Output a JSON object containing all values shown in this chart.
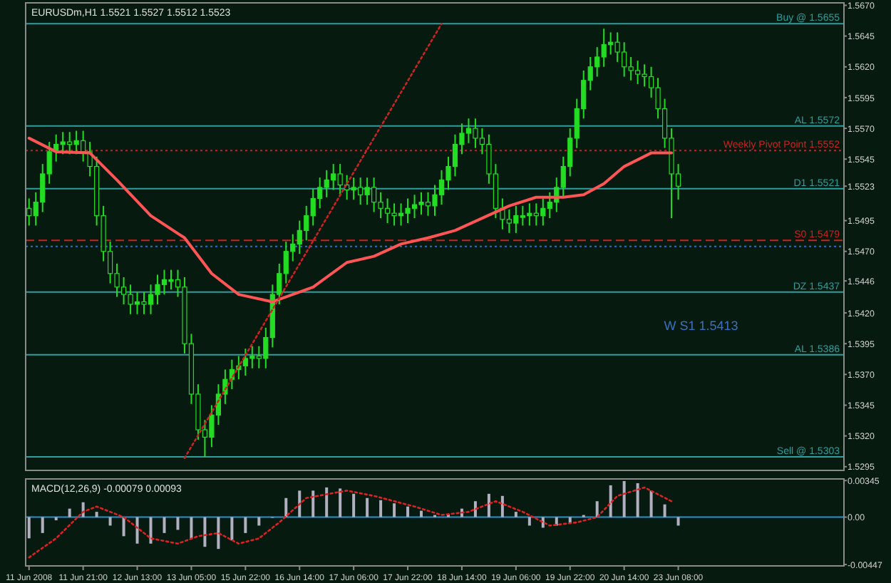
{
  "chart_data": [
    {
      "type": "candlestick",
      "title": "EURUSDm,H1 1.5521 1.5527 1.5512 1.5523",
      "color": "#22dd22",
      "categories": [
        null,
        null,
        null,
        null,
        null,
        null,
        null,
        null,
        null,
        null,
        null,
        null,
        null,
        null,
        null,
        null,
        null,
        null,
        null,
        null,
        null,
        null,
        null,
        null,
        null,
        null,
        null,
        null,
        null,
        null,
        null,
        null,
        null,
        null,
        null,
        null,
        null,
        null,
        null,
        null,
        null,
        null,
        null,
        null,
        null,
        null,
        null,
        null,
        null,
        null,
        null,
        null,
        null,
        null,
        null,
        null,
        null,
        null,
        null,
        null,
        null,
        null,
        null,
        null,
        null,
        null,
        null,
        null,
        null,
        null,
        null,
        null,
        null,
        null,
        null,
        null,
        null,
        null,
        null,
        null,
        null,
        null,
        null,
        null,
        null,
        null,
        null,
        null,
        null,
        null,
        null,
        null,
        null,
        null,
        null,
        null,
        null,
        null,
        null,
        null,
        null,
        null,
        null,
        null,
        null,
        null,
        null,
        null,
        null,
        null,
        null,
        null,
        null,
        null,
        null,
        null,
        null,
        null,
        null,
        null,
        null
      ],
      "ohlc": [
        [
          1.5505,
          1.5513,
          1.5491,
          1.5499
        ],
        [
          1.5499,
          1.5518,
          1.5491,
          1.551
        ],
        [
          1.551,
          1.5541,
          1.5502,
          1.5533
        ],
        [
          1.5533,
          1.5559,
          1.5525,
          1.5551
        ],
        [
          1.5551,
          1.5565,
          1.5543,
          1.5557
        ],
        [
          1.5557,
          1.5567,
          1.5549,
          1.5559
        ],
        [
          1.5559,
          1.5567,
          1.5549,
          1.5557
        ],
        [
          1.5557,
          1.5568,
          1.5549,
          1.556
        ],
        [
          1.556,
          1.5568,
          1.5543,
          1.5551
        ],
        [
          1.5551,
          1.5559,
          1.5531,
          1.5539
        ],
        [
          1.5539,
          1.5547,
          1.5491,
          1.5499
        ],
        [
          1.5499,
          1.5507,
          1.5462,
          1.547
        ],
        [
          1.547,
          1.5478,
          1.5444,
          1.5452
        ],
        [
          1.5452,
          1.546,
          1.5433,
          1.5441
        ],
        [
          1.5441,
          1.5449,
          1.5427,
          1.5435
        ],
        [
          1.5435,
          1.5443,
          1.5419,
          1.5427
        ],
        [
          1.5427,
          1.5437,
          1.5419,
          1.5429
        ],
        [
          1.5429,
          1.5437,
          1.5419,
          1.5427
        ],
        [
          1.5427,
          1.5443,
          1.5419,
          1.5435
        ],
        [
          1.5435,
          1.5451,
          1.5427,
          1.5443
        ],
        [
          1.5443,
          1.5455,
          1.5435,
          1.5447
        ],
        [
          1.5447,
          1.5455,
          1.5439,
          1.5447
        ],
        [
          1.5447,
          1.5455,
          1.5433,
          1.5441
        ],
        [
          1.5441,
          1.5449,
          1.5387,
          1.5395
        ],
        [
          1.5395,
          1.5403,
          1.5346,
          1.5354
        ],
        [
          1.5354,
          1.5362,
          1.5317,
          1.5325
        ],
        [
          1.5325,
          1.5333,
          1.5303,
          1.5319
        ],
        [
          1.5319,
          1.5345,
          1.5311,
          1.5337
        ],
        [
          1.5337,
          1.5362,
          1.5329,
          1.5354
        ],
        [
          1.5354,
          1.5374,
          1.5346,
          1.5366
        ],
        [
          1.5366,
          1.5382,
          1.5358,
          1.5374
        ],
        [
          1.5374,
          1.5385,
          1.5366,
          1.5377
        ],
        [
          1.5377,
          1.5391,
          1.5369,
          1.5383
        ],
        [
          1.5383,
          1.5393,
          1.5375,
          1.5385
        ],
        [
          1.5385,
          1.5393,
          1.5375,
          1.5383
        ],
        [
          1.5383,
          1.5408,
          1.5375,
          1.54
        ],
        [
          1.54,
          1.5443,
          1.5392,
          1.5435
        ],
        [
          1.5435,
          1.546,
          1.5427,
          1.5452
        ],
        [
          1.5452,
          1.5478,
          1.5444,
          1.547
        ],
        [
          1.547,
          1.5484,
          1.5462,
          1.5476
        ],
        [
          1.5476,
          1.5495,
          1.5468,
          1.5487
        ],
        [
          1.5487,
          1.5507,
          1.5479,
          1.5499
        ],
        [
          1.5499,
          1.5521,
          1.5491,
          1.5513
        ],
        [
          1.5513,
          1.553,
          1.5505,
          1.5522
        ],
        [
          1.5522,
          1.5536,
          1.5514,
          1.5528
        ],
        [
          1.5528,
          1.5541,
          1.552,
          1.5533
        ],
        [
          1.5533,
          1.5541,
          1.5516,
          1.5524
        ],
        [
          1.5524,
          1.5532,
          1.5512,
          1.552
        ],
        [
          1.552,
          1.553,
          1.5512,
          1.5522
        ],
        [
          1.5522,
          1.553,
          1.5508,
          1.5516
        ],
        [
          1.5516,
          1.553,
          1.5508,
          1.5522
        ],
        [
          1.5522,
          1.553,
          1.5502,
          1.551
        ],
        [
          1.551,
          1.5518,
          1.5497,
          1.5505
        ],
        [
          1.5505,
          1.5513,
          1.5493,
          1.5501
        ],
        [
          1.5501,
          1.5509,
          1.5491,
          1.5499
        ],
        [
          1.5499,
          1.5509,
          1.5491,
          1.5501
        ],
        [
          1.5501,
          1.5513,
          1.5493,
          1.5505
        ],
        [
          1.5505,
          1.5516,
          1.5497,
          1.5508
        ],
        [
          1.5508,
          1.5518,
          1.55,
          1.551
        ],
        [
          1.551,
          1.5518,
          1.5499,
          1.5507
        ],
        [
          1.5507,
          1.5524,
          1.5499,
          1.5516
        ],
        [
          1.5516,
          1.5536,
          1.5508,
          1.5528
        ],
        [
          1.5528,
          1.5547,
          1.552,
          1.5539
        ],
        [
          1.5539,
          1.5565,
          1.5531,
          1.5557
        ],
        [
          1.5557,
          1.5574,
          1.5549,
          1.5566
        ],
        [
          1.5566,
          1.5578,
          1.5558,
          1.557
        ],
        [
          1.557,
          1.5578,
          1.5554,
          1.5562
        ],
        [
          1.5562,
          1.557,
          1.5549,
          1.5557
        ],
        [
          1.5557,
          1.5565,
          1.5525,
          1.5533
        ],
        [
          1.5533,
          1.5541,
          1.5497,
          1.5505
        ],
        [
          1.5505,
          1.5513,
          1.5488,
          1.5496
        ],
        [
          1.5496,
          1.5504,
          1.5485,
          1.5493
        ],
        [
          1.5493,
          1.5507,
          1.5485,
          1.5499
        ],
        [
          1.5499,
          1.5507,
          1.5491,
          1.5499
        ],
        [
          1.5499,
          1.5509,
          1.5491,
          1.5501
        ],
        [
          1.5501,
          1.5509,
          1.5491,
          1.5499
        ],
        [
          1.5499,
          1.5513,
          1.5491,
          1.5505
        ],
        [
          1.5505,
          1.5518,
          1.5497,
          1.551
        ],
        [
          1.551,
          1.553,
          1.5502,
          1.5522
        ],
        [
          1.5522,
          1.5547,
          1.5514,
          1.5539
        ],
        [
          1.5539,
          1.557,
          1.5531,
          1.5562
        ],
        [
          1.5562,
          1.5594,
          1.5554,
          1.5586
        ],
        [
          1.5586,
          1.5617,
          1.5578,
          1.5609
        ],
        [
          1.5609,
          1.5628,
          1.5601,
          1.562
        ],
        [
          1.562,
          1.5636,
          1.5612,
          1.5628
        ],
        [
          1.5628,
          1.5651,
          1.562,
          1.5638
        ],
        [
          1.5638,
          1.5648,
          1.563,
          1.564
        ],
        [
          1.564,
          1.5648,
          1.5624,
          1.5632
        ],
        [
          1.5632,
          1.564,
          1.5612,
          1.562
        ],
        [
          1.562,
          1.5628,
          1.5609,
          1.5617
        ],
        [
          1.5617,
          1.5625,
          1.5606,
          1.5614
        ],
        [
          1.5614,
          1.5622,
          1.5604,
          1.5612
        ],
        [
          1.5612,
          1.562,
          1.5595,
          1.5603
        ],
        [
          1.5603,
          1.5611,
          1.5578,
          1.5586
        ],
        [
          1.5586,
          1.5594,
          1.5554,
          1.5562
        ],
        [
          1.5562,
          1.557,
          1.5497,
          1.5533
        ],
        [
          1.5533,
          1.5541,
          1.5512,
          1.5523
        ],
        null,
        null,
        null,
        null,
        null,
        null,
        null,
        null,
        null,
        null,
        null,
        null,
        null,
        null,
        null,
        null,
        null,
        null,
        null,
        null,
        null,
        null,
        null,
        null
      ],
      "ylim": [
        1.5292,
        1.5672
      ],
      "yticks": [
        {
          "value": 1.567,
          "label": "1.5670"
        },
        {
          "value": 1.5645,
          "label": "1.5645"
        },
        {
          "value": 1.562,
          "label": "1.5620"
        },
        {
          "value": 1.5595,
          "label": "1.5595"
        },
        {
          "value": 1.557,
          "label": "1.5570"
        },
        {
          "value": 1.5545,
          "label": "1.5545"
        },
        {
          "value": 1.5523,
          "label": "1.5523"
        },
        {
          "value": 1.5495,
          "label": "1.5495"
        },
        {
          "value": 1.547,
          "label": "1.5470"
        },
        {
          "value": 1.5446,
          "label": "1.5446"
        },
        {
          "value": 1.542,
          "label": "1.5420"
        },
        {
          "value": 1.5395,
          "label": "1.5395"
        },
        {
          "value": 1.537,
          "label": "1.5370"
        },
        {
          "value": 1.5345,
          "label": "1.5345"
        },
        {
          "value": 1.532,
          "label": "1.5320"
        },
        {
          "value": 1.5295,
          "label": "1.5295"
        }
      ],
      "series": [
        {
          "type": "line",
          "color": "#ff5555",
          "line_style": "solid",
          "values": [
            1.5562,
            null,
            null,
            null,
            1.5551,
            null,
            null,
            null,
            null,
            1.555,
            null,
            null,
            null,
            1.5528,
            null,
            null,
            null,
            null,
            1.5499,
            null,
            null,
            null,
            null,
            1.5481,
            null,
            null,
            null,
            1.5452,
            null,
            null,
            null,
            1.5435,
            null,
            null,
            null,
            null,
            1.5429,
            null,
            null,
            1.5435,
            null,
            null,
            1.5441,
            null,
            null,
            null,
            null,
            1.5461,
            null,
            null,
            null,
            1.5466,
            null,
            null,
            null,
            1.5476,
            null,
            null,
            null,
            1.5481,
            null,
            null,
            null,
            1.5487,
            null,
            null,
            null,
            null,
            null,
            null,
            null,
            1.5507,
            null,
            null,
            null,
            1.5514,
            null,
            null,
            null,
            1.5514,
            null,
            null,
            1.5516,
            null,
            null,
            1.5525,
            null,
            null,
            1.5539,
            null,
            null,
            null,
            1.555,
            null,
            null,
            1.555,
            null,
            null,
            null,
            null,
            null,
            null,
            null,
            null,
            null,
            null,
            null,
            null,
            null,
            null,
            null,
            null,
            null,
            null,
            null,
            null,
            null,
            null,
            null,
            null,
            null
          ]
        },
        {
          "type": "line",
          "color": "#cc2222",
          "line_style": "dotted",
          "values": [
            null,
            null,
            null,
            null,
            null,
            null,
            null,
            null,
            null,
            null,
            null,
            null,
            null,
            null,
            null,
            null,
            null,
            null,
            null,
            null,
            null,
            null,
            null,
            1.5302,
            null,
            null,
            null,
            null,
            null,
            null,
            null,
            null,
            null,
            null,
            null,
            null,
            null,
            null,
            null,
            null,
            null,
            null,
            null,
            null,
            null,
            null,
            null,
            null,
            null,
            null,
            null,
            null,
            null,
            null,
            null,
            null,
            null,
            null,
            null,
            null,
            null,
            1.5655,
            null,
            null,
            null,
            null,
            null,
            null,
            null,
            null,
            null,
            null,
            null,
            null,
            null,
            null,
            null,
            null,
            null,
            null,
            null,
            null,
            null,
            null,
            null,
            null,
            null,
            null,
            null,
            null,
            null,
            null,
            null,
            null,
            null,
            null,
            null,
            null,
            null,
            null,
            null,
            null,
            null,
            null,
            null,
            null,
            null,
            null,
            null,
            null,
            null,
            null,
            null,
            null,
            null,
            null,
            null,
            null,
            null,
            null,
            null
          ]
        }
      ],
      "ref_lines": [
        {
          "axis": "y",
          "value": 1.5655,
          "label": "Buy @ 1.5655",
          "color": "#2e9e9e",
          "line_style": "solid"
        },
        {
          "axis": "y",
          "value": 1.5572,
          "label": "AL 1.5572",
          "color": "#2e9e9e",
          "line_style": "solid"
        },
        {
          "axis": "y",
          "value": 1.5552,
          "label": "Weekly Pivot Point 1.5552",
          "color": "#cc2222",
          "line_style": "dotted"
        },
        {
          "axis": "y",
          "value": 1.5521,
          "label": "D1 1.5521",
          "color": "#2e9e9e",
          "line_style": "solid"
        },
        {
          "axis": "y",
          "value": 1.5479,
          "label": "S0 1.5479",
          "color": "#cc2222",
          "line_style": "dashed"
        },
        {
          "axis": "y",
          "value": 1.5474,
          "color": "#2a6fd0",
          "line_style": "dotted"
        },
        {
          "axis": "y",
          "value": 1.5437,
          "label": "DZ 1.5437",
          "color": "#2e9e9e",
          "line_style": "solid"
        },
        {
          "axis": "y",
          "value": 1.5386,
          "label": "AL 1.5386",
          "color": "#2e9e9e",
          "line_style": "solid"
        },
        {
          "axis": "y",
          "value": 1.5303,
          "label": "Sell @ 1.5303",
          "color": "#2e9e9e",
          "line_style": "solid"
        }
      ],
      "annotations": [
        "W S1 1.5413"
      ]
    },
    {
      "type": "bar",
      "title": "MACD(12,26,9) -0.00079 0.00093",
      "color": "#b0b0c0",
      "categories": [
        "11 Jun 2008",
        null,
        null,
        null,
        null,
        null,
        null,
        null,
        "11 Jun 21:00",
        null,
        null,
        null,
        null,
        null,
        null,
        null,
        "12 Jun 13:00",
        null,
        null,
        null,
        null,
        null,
        null,
        null,
        "13 Jun 05:00",
        null,
        null,
        null,
        null,
        null,
        null,
        null,
        "15 Jun 22:00",
        null,
        null,
        null,
        null,
        null,
        null,
        null,
        "16 Jun 14:00",
        null,
        null,
        null,
        null,
        null,
        null,
        null,
        "17 Jun 06:00",
        null,
        null,
        null,
        null,
        null,
        null,
        null,
        "17 Jun 22:00",
        null,
        null,
        null,
        null,
        null,
        null,
        null,
        "18 Jun 14:00",
        null,
        null,
        null,
        null,
        null,
        null,
        null,
        "19 Jun 06:00",
        null,
        null,
        null,
        null,
        null,
        null,
        null,
        "19 Jun 22:00",
        null,
        null,
        null,
        null,
        null,
        null,
        null,
        "20 Jun 14:00",
        null,
        null,
        null,
        null,
        null,
        null,
        null,
        "23 Jun 08:00",
        null,
        null,
        null,
        null,
        null,
        null,
        null,
        null,
        null,
        null,
        null,
        null,
        null,
        null,
        null,
        null,
        null,
        null,
        null,
        null,
        null,
        null,
        null,
        null
      ],
      "values": [
        -0.002,
        null,
        -0.0015,
        null,
        -0.0003,
        null,
        0.0008,
        null,
        0.0014,
        null,
        0.0005,
        null,
        -0.0008,
        null,
        -0.0018,
        null,
        -0.0025,
        null,
        -0.0025,
        null,
        -0.0015,
        null,
        -0.0012,
        null,
        -0.002,
        null,
        -0.0028,
        null,
        -0.003,
        null,
        -0.0022,
        null,
        -0.0015,
        null,
        -0.0008,
        null,
        0.0,
        null,
        0.0018,
        null,
        0.0025,
        null,
        0.0025,
        null,
        0.0028,
        null,
        0.0027,
        null,
        0.0022,
        null,
        0.0018,
        null,
        0.0016,
        null,
        0.0013,
        null,
        0.001,
        null,
        0.0006,
        null,
        0.0002,
        null,
        0.0003,
        null,
        0.0008,
        null,
        0.0015,
        null,
        0.0022,
        null,
        0.002,
        null,
        0.0005,
        null,
        -0.0008,
        null,
        -0.001,
        null,
        -0.0008,
        null,
        -0.0005,
        null,
        0.0002,
        null,
        0.0015,
        null,
        0.003,
        null,
        0.0034,
        null,
        0.0032,
        null,
        0.0025,
        null,
        0.0012,
        null,
        -0.0008,
        null,
        null,
        null,
        null,
        null,
        null,
        null,
        null,
        null,
        null,
        null,
        null,
        null,
        null,
        null,
        null,
        null,
        null,
        null,
        null,
        null,
        null,
        null,
        null
      ],
      "ylim": [
        -0.0046,
        0.0036
      ],
      "yticks": [
        {
          "value": 0.00345,
          "label": "0.00345"
        },
        {
          "value": 0,
          "label": "0.00"
        },
        {
          "value": -0.00447,
          "label": "-0.00447"
        }
      ],
      "series": [
        {
          "type": "line",
          "color": "#dd2222",
          "line_style": "dotted",
          "values": [
            -0.0038,
            null,
            null,
            null,
            -0.002,
            null,
            null,
            null,
            0.0005,
            null,
            0.001,
            null,
            null,
            null,
            0.0,
            null,
            null,
            null,
            -0.002,
            null,
            null,
            null,
            -0.0025,
            null,
            null,
            -0.0018,
            null,
            null,
            -0.0015,
            null,
            null,
            -0.0025,
            null,
            null,
            -0.002,
            null,
            null,
            -0.0005,
            null,
            null,
            null,
            0.0018,
            null,
            null,
            null,
            null,
            null,
            0.0025,
            null,
            null,
            null,
            0.002,
            null,
            null,
            null,
            null,
            null,
            0.001,
            null,
            null,
            null,
            0.0002,
            null,
            null,
            null,
            0.0005,
            null,
            null,
            null,
            0.0015,
            null,
            null,
            null,
            0.0005,
            null,
            null,
            null,
            -0.0008,
            null,
            null,
            null,
            -0.0005,
            null,
            null,
            0.0,
            null,
            null,
            0.002,
            null,
            null,
            null,
            0.0028,
            null,
            null,
            null,
            0.0015,
            null,
            null,
            null,
            null,
            null,
            null,
            null,
            null,
            null,
            null,
            null,
            null,
            null,
            null,
            null,
            null,
            null,
            null,
            null,
            null,
            null,
            null,
            null,
            null,
            null
          ]
        }
      ],
      "ref_lines": [
        {
          "axis": "y",
          "value": 0,
          "color": "#2a8fd0",
          "line_style": "solid"
        }
      ]
    }
  ]
}
